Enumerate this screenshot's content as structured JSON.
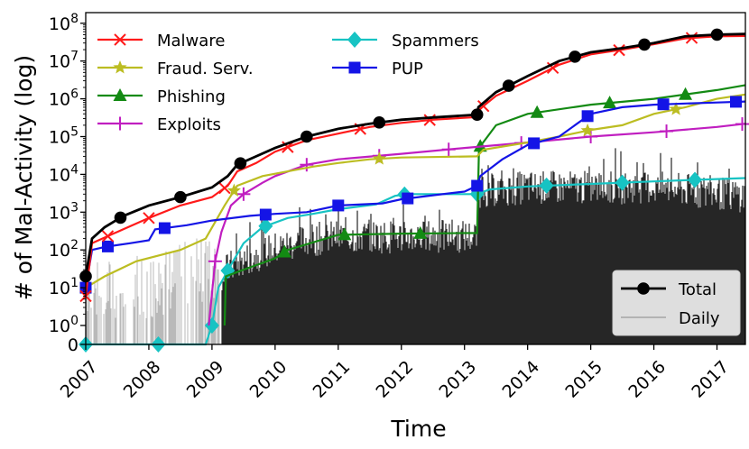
{
  "chart_data": {
    "type": "line",
    "xlabel": "Time",
    "ylabel": "# of Mal-Activity (log)",
    "xlim": [
      2007.0,
      2017.45
    ],
    "y_scale": "symlog",
    "y_ticks": [
      {
        "value": 0,
        "label": "0"
      },
      {
        "value": 1,
        "label": "10^0"
      },
      {
        "value": 10,
        "label": "10^1"
      },
      {
        "value": 100,
        "label": "10^2"
      },
      {
        "value": 1000,
        "label": "10^3"
      },
      {
        "value": 10000,
        "label": "10^4"
      },
      {
        "value": 100000,
        "label": "10^5"
      },
      {
        "value": 1000000,
        "label": "10^6"
      },
      {
        "value": 10000000,
        "label": "10^7"
      },
      {
        "value": 100000000,
        "label": "10^8"
      }
    ],
    "x_ticks": [
      "2007",
      "2008",
      "2009",
      "2010",
      "2011",
      "2012",
      "2013",
      "2014",
      "2015",
      "2016",
      "2017"
    ],
    "legend_placement_main": "upper-left",
    "legend_placement_total": "lower-right",
    "series": [
      {
        "name": "Malware",
        "color": "#ff1a1a",
        "marker": "x",
        "x": [
          2007.0,
          2007.1,
          2007.5,
          2008.0,
          2008.5,
          2009.0,
          2009.25,
          2009.4,
          2009.7,
          2010.0,
          2010.5,
          2011.0,
          2011.5,
          2012.0,
          2012.5,
          2013.2,
          2013.22,
          2013.5,
          2014.0,
          2014.5,
          2015.0,
          2015.5,
          2016.0,
          2016.5,
          2017.0,
          2017.45
        ],
        "y": [
          6,
          150,
          300,
          700,
          1500,
          2500,
          5000,
          12000,
          20000,
          40000,
          80000,
          120000,
          180000,
          230000,
          280000,
          330000,
          500000,
          1200000,
          3000000,
          8000000,
          15000000,
          20000000,
          28000000,
          40000000,
          45000000,
          46000000
        ],
        "marker_x": [
          2007.0,
          2007.35,
          2008.0,
          2009.2,
          2010.2,
          2011.35,
          2012.45,
          2013.3,
          2014.4,
          2015.45,
          2016.6
        ]
      },
      {
        "name": "Fraud. Serv.",
        "color": "#bcbd22",
        "marker": "star",
        "x": [
          2007.0,
          2007.3,
          2007.8,
          2008.5,
          2008.9,
          2009.2,
          2009.4,
          2009.8,
          2010.2,
          2010.6,
          2011.0,
          2011.5,
          2012.0,
          2013.2,
          2013.3,
          2014.0,
          2014.5,
          2015.0,
          2015.5,
          2016.0,
          2016.5,
          2017.0,
          2017.45
        ],
        "y": [
          10,
          20,
          50,
          100,
          200,
          1500,
          5000,
          9000,
          12000,
          16000,
          20000,
          25000,
          28000,
          30000,
          45000,
          70000,
          100000,
          150000,
          200000,
          400000,
          600000,
          1000000,
          1300000
        ],
        "marker_x": [
          2009.35,
          2011.65,
          2014.95,
          2016.35
        ]
      },
      {
        "name": "Phishing",
        "color": "#138a13",
        "marker": "triangle",
        "x": [
          2009.2,
          2009.22,
          2009.5,
          2010.0,
          2010.2,
          2011.0,
          2012.0,
          2013.0,
          2013.2,
          2013.23,
          2013.5,
          2014.0,
          2015.0,
          2016.0,
          2017.0,
          2017.45
        ],
        "y": [
          1,
          20,
          30,
          60,
          100,
          250,
          270,
          280,
          280,
          50000,
          200000,
          400000,
          700000,
          1000000,
          1700000,
          2300000
        ],
        "marker_x": [
          2010.15,
          2011.1,
          2012.3,
          2013.25,
          2014.15,
          2015.3,
          2016.5
        ]
      },
      {
        "name": "Exploits",
        "color": "#c01ec0",
        "marker": "plus",
        "x": [
          2008.95,
          2009.05,
          2009.15,
          2009.3,
          2009.5,
          2009.8,
          2010.0,
          2010.5,
          2011.0,
          2012.0,
          2013.0,
          2014.0,
          2015.0,
          2016.0,
          2017.0,
          2017.45
        ],
        "y": [
          1,
          50,
          300,
          1500,
          3000,
          6000,
          9000,
          18000,
          25000,
          35000,
          50000,
          70000,
          100000,
          130000,
          180000,
          220000
        ],
        "marker_x": [
          2009.05,
          2009.5,
          2010.5,
          2011.65,
          2012.75,
          2013.9,
          2015.0,
          2016.2,
          2017.4
        ]
      },
      {
        "name": "Spammers",
        "color": "#17c3c3",
        "marker": "diamond",
        "x": [
          2007.0,
          2008.9,
          2009.0,
          2009.1,
          2009.3,
          2009.5,
          2009.8,
          2010.2,
          2010.6,
          2011.0,
          2011.6,
          2011.9,
          2012.1,
          2012.5,
          2013.2,
          2013.4,
          2014.0,
          2015.0,
          2016.0,
          2017.0,
          2017.45
        ],
        "y": [
          0,
          0,
          1,
          10,
          40,
          150,
          400,
          700,
          900,
          1200,
          1600,
          2700,
          3000,
          3000,
          3000,
          4000,
          4800,
          5600,
          6500,
          7500,
          8000
        ],
        "marker_x": [
          2007.0,
          2008.15,
          2009.0,
          2009.25,
          2009.85,
          2012.05,
          2013.2,
          2014.3,
          2015.5,
          2016.65
        ]
      },
      {
        "name": "PUP",
        "color": "#1414e6",
        "marker": "square",
        "x": [
          2007.0,
          2007.1,
          2007.3,
          2007.7,
          2008.0,
          2008.1,
          2008.6,
          2009.0,
          2009.6,
          2010.0,
          2010.5,
          2011.0,
          2011.7,
          2012.0,
          2012.5,
          2013.0,
          2013.2,
          2013.25,
          2013.6,
          2014.0,
          2014.5,
          2015.0,
          2015.5,
          2016.0,
          2016.5,
          2017.0,
          2017.45
        ],
        "y": [
          10,
          100,
          120,
          150,
          180,
          350,
          450,
          600,
          800,
          900,
          1000,
          1500,
          1700,
          2200,
          2800,
          3500,
          5000,
          9000,
          25000,
          60000,
          100000,
          400000,
          600000,
          700000,
          750000,
          800000,
          850000
        ],
        "marker_x": [
          2007.0,
          2007.35,
          2008.25,
          2009.85,
          2011.0,
          2012.1,
          2013.2,
          2014.1,
          2014.95,
          2016.15,
          2017.3
        ]
      },
      {
        "name": "Total",
        "color": "#000000",
        "marker": "circle",
        "x": [
          2007.0,
          2007.1,
          2007.3,
          2007.6,
          2008.0,
          2008.5,
          2009.0,
          2009.25,
          2009.4,
          2009.7,
          2010.0,
          2010.5,
          2011.0,
          2011.5,
          2012.0,
          2012.5,
          2013.2,
          2013.22,
          2013.5,
          2014.0,
          2014.5,
          2015.0,
          2015.5,
          2016.0,
          2016.5,
          2017.0,
          2017.45
        ],
        "y": [
          20,
          200,
          400,
          800,
          1500,
          2500,
          4500,
          9000,
          18000,
          30000,
          50000,
          100000,
          160000,
          220000,
          280000,
          320000,
          380000,
          600000,
          1500000,
          4000000,
          10000000,
          17000000,
          22000000,
          30000000,
          45000000,
          50000000,
          52000000
        ],
        "marker_x": [
          2007.0,
          2007.55,
          2008.5,
          2009.45,
          2010.5,
          2011.65,
          2013.2,
          2013.7,
          2014.75,
          2015.85,
          2017.0
        ]
      },
      {
        "name": "Daily",
        "color": "#222222",
        "marker": "none",
        "x": [
          2007.0,
          2008.0,
          2009.0,
          2009.3,
          2009.6,
          2010.0,
          2010.5,
          2011.0,
          2012.0,
          2013.0,
          2013.2,
          2013.22,
          2014.0,
          2015.0,
          2016.0,
          2017.0,
          2017.45
        ],
        "y": [
          3,
          5,
          15,
          40,
          70,
          120,
          200,
          250,
          250,
          250,
          250,
          4000,
          5000,
          5000,
          5000,
          3500,
          3000
        ]
      }
    ]
  }
}
